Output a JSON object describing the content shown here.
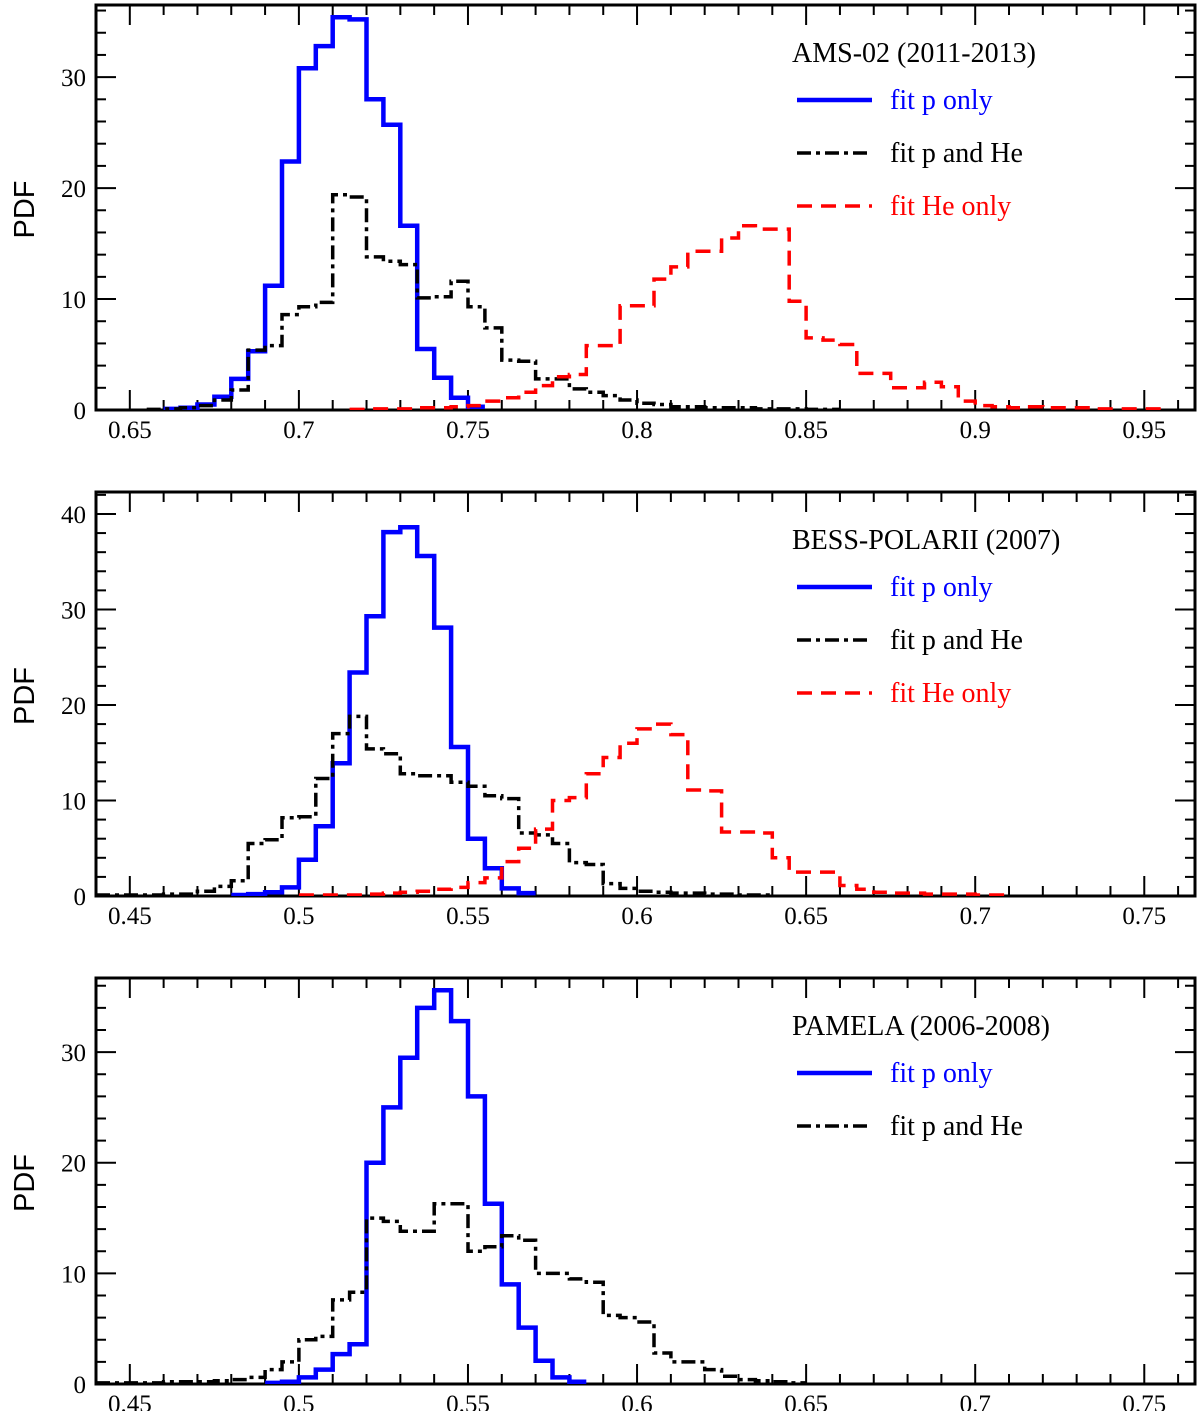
{
  "chart_data": [
    {
      "type": "step",
      "title": "AMS-02 (2011-2013)",
      "ylabel": "PDF",
      "xlim": [
        0.64,
        0.965
      ],
      "ylim": [
        0,
        36.5
      ],
      "xticks": [
        0.65,
        0.7,
        0.75,
        0.8,
        0.85,
        0.9,
        0.95
      ],
      "xtick_labels": [
        "0.65",
        "0.7",
        "0.75",
        "0.8",
        "0.85",
        "0.9",
        "0.95"
      ],
      "yticks": [
        0,
        10,
        20,
        30
      ],
      "ytick_labels": [
        "0",
        "10",
        "20",
        "30"
      ],
      "series": [
        {
          "name": "fit p only",
          "color": "#0000ff",
          "style": "solid",
          "edges": [
            0.66,
            0.665,
            0.67,
            0.675,
            0.68,
            0.685,
            0.69,
            0.695,
            0.7,
            0.705,
            0.71,
            0.715,
            0.72,
            0.725,
            0.73,
            0.735,
            0.74,
            0.745,
            0.75,
            0.755
          ],
          "values": [
            0.1,
            0.2,
            0.5,
            1.2,
            2.8,
            5.3,
            11.2,
            22.4,
            30.8,
            32.8,
            35.4,
            35.2,
            28.0,
            25.7,
            16.6,
            5.5,
            2.9,
            1.1,
            0.3
          ]
        },
        {
          "name": "fit p and He",
          "color": "#000000",
          "style": "dashdot",
          "edges": [
            0.655,
            0.66,
            0.665,
            0.67,
            0.675,
            0.68,
            0.685,
            0.69,
            0.695,
            0.7,
            0.705,
            0.71,
            0.715,
            0.72,
            0.725,
            0.73,
            0.735,
            0.74,
            0.745,
            0.75,
            0.755,
            0.76,
            0.765,
            0.77,
            0.775,
            0.78,
            0.785,
            0.79,
            0.795,
            0.8,
            0.805,
            0.81,
            0.815,
            0.82,
            0.825,
            0.83,
            0.835,
            0.84,
            0.845,
            0.85,
            0.855,
            0.86
          ],
          "values": [
            0.05,
            0.1,
            0.2,
            0.4,
            0.9,
            1.8,
            5.4,
            5.8,
            8.6,
            9.3,
            9.7,
            19.4,
            19.2,
            13.8,
            13.4,
            13.1,
            10.1,
            10.2,
            11.6,
            9.3,
            7.4,
            4.5,
            4.4,
            2.8,
            2.8,
            1.9,
            1.6,
            1.3,
            0.9,
            0.6,
            0.5,
            0.3,
            0.3,
            0.2,
            0.2,
            0.2,
            0.1,
            0.1,
            0.1,
            0.05,
            0.05
          ]
        },
        {
          "name": "fit He only",
          "color": "#ff0000",
          "style": "dashed",
          "edges": [
            0.715,
            0.72,
            0.725,
            0.73,
            0.735,
            0.74,
            0.745,
            0.75,
            0.755,
            0.76,
            0.765,
            0.77,
            0.775,
            0.78,
            0.785,
            0.79,
            0.795,
            0.8,
            0.805,
            0.81,
            0.815,
            0.82,
            0.825,
            0.83,
            0.835,
            0.84,
            0.845,
            0.85,
            0.855,
            0.86,
            0.865,
            0.87,
            0.875,
            0.88,
            0.885,
            0.89,
            0.895,
            0.9,
            0.905,
            0.91,
            0.915,
            0.92,
            0.925,
            0.93,
            0.935,
            0.94,
            0.945,
            0.95,
            0.955
          ],
          "values": [
            0.05,
            0.1,
            0.1,
            0.1,
            0.2,
            0.2,
            0.3,
            0.4,
            0.8,
            1.1,
            1.6,
            2.2,
            3.0,
            3.2,
            5.8,
            5.8,
            9.4,
            9.4,
            11.8,
            12.9,
            14.3,
            14.3,
            15.5,
            16.6,
            16.3,
            16.3,
            9.8,
            6.5,
            6.3,
            5.9,
            3.3,
            3.3,
            2.0,
            2.0,
            2.5,
            2.1,
            0.8,
            0.4,
            0.3,
            0.2,
            0.3,
            0.2,
            0.2,
            0.2,
            0.1,
            0.1,
            0.1,
            0.1
          ]
        }
      ]
    },
    {
      "type": "step",
      "title": "BESS-POLARII (2007)",
      "ylabel": "PDF",
      "xlim": [
        0.44,
        0.765
      ],
      "ylim": [
        0,
        42.3
      ],
      "xticks": [
        0.45,
        0.5,
        0.55,
        0.6,
        0.65,
        0.7,
        0.75
      ],
      "xtick_labels": [
        "0.45",
        "0.5",
        "0.55",
        "0.6",
        "0.65",
        "0.7",
        "0.75"
      ],
      "yticks": [
        0,
        10,
        20,
        30,
        40
      ],
      "ytick_labels": [
        "0",
        "10",
        "20",
        "30",
        "40"
      ],
      "series": [
        {
          "name": "fit p only",
          "color": "#0000ff",
          "style": "solid",
          "edges": [
            0.48,
            0.485,
            0.49,
            0.495,
            0.5,
            0.505,
            0.51,
            0.515,
            0.52,
            0.525,
            0.53,
            0.535,
            0.54,
            0.545,
            0.55,
            0.555,
            0.56,
            0.565,
            0.57
          ],
          "values": [
            0.1,
            0.2,
            0.4,
            0.9,
            3.8,
            7.3,
            13.9,
            23.4,
            29.3,
            38.1,
            38.6,
            35.6,
            28.1,
            15.6,
            6.0,
            2.9,
            0.8,
            0.3
          ]
        },
        {
          "name": "fit p and He",
          "color": "#000000",
          "style": "dashdot",
          "edges": [
            0.44,
            0.445,
            0.45,
            0.455,
            0.46,
            0.465,
            0.47,
            0.475,
            0.48,
            0.485,
            0.49,
            0.495,
            0.5,
            0.505,
            0.51,
            0.515,
            0.52,
            0.525,
            0.53,
            0.535,
            0.54,
            0.545,
            0.55,
            0.555,
            0.56,
            0.565,
            0.57,
            0.575,
            0.58,
            0.585,
            0.59,
            0.595,
            0.6,
            0.605,
            0.61,
            0.615,
            0.62,
            0.625,
            0.63,
            0.635,
            0.64
          ],
          "values": [
            0.1,
            0.1,
            0.1,
            0.1,
            0.2,
            0.2,
            0.5,
            1.0,
            1.6,
            5.5,
            5.9,
            8.2,
            8.3,
            12.3,
            17.0,
            18.8,
            15.4,
            14.9,
            12.8,
            12.6,
            12.6,
            11.9,
            11.5,
            10.5,
            10.2,
            6.6,
            6.4,
            5.5,
            3.5,
            3.3,
            1.3,
            0.8,
            0.5,
            0.4,
            0.3,
            0.3,
            0.2,
            0.2,
            0.1,
            0.1
          ]
        },
        {
          "name": "fit He only",
          "color": "#ff0000",
          "style": "dashed",
          "edges": [
            0.5,
            0.505,
            0.51,
            0.515,
            0.52,
            0.525,
            0.53,
            0.535,
            0.54,
            0.545,
            0.55,
            0.555,
            0.56,
            0.565,
            0.57,
            0.575,
            0.58,
            0.585,
            0.59,
            0.595,
            0.6,
            0.605,
            0.61,
            0.615,
            0.62,
            0.625,
            0.63,
            0.635,
            0.64,
            0.645,
            0.65,
            0.655,
            0.66,
            0.665,
            0.67,
            0.675,
            0.68,
            0.685,
            0.69,
            0.695,
            0.7,
            0.705,
            0.71
          ],
          "values": [
            0.1,
            0.1,
            0.1,
            0.1,
            0.2,
            0.3,
            0.4,
            0.5,
            0.7,
            0.9,
            1.4,
            1.9,
            3.6,
            5.0,
            7.0,
            10.0,
            10.3,
            12.8,
            14.5,
            16.0,
            17.5,
            18.0,
            16.9,
            11.1,
            11.0,
            6.7,
            6.7,
            6.6,
            4.0,
            2.5,
            2.5,
            2.5,
            1.1,
            0.7,
            0.4,
            0.3,
            0.3,
            0.2,
            0.2,
            0.2,
            0.1,
            0.1
          ]
        }
      ]
    },
    {
      "type": "step",
      "title": "PAMELA (2006-2008)",
      "ylabel": "PDF",
      "xlim": [
        0.44,
        0.765
      ],
      "ylim": [
        0,
        36.7
      ],
      "xticks": [
        0.45,
        0.5,
        0.55,
        0.6,
        0.65,
        0.7,
        0.75
      ],
      "xtick_labels": [
        "0.45",
        "0.5",
        "0.55",
        "0.6",
        "0.65",
        "0.7",
        "0.75"
      ],
      "yticks": [
        0,
        10,
        20,
        30
      ],
      "ytick_labels": [
        "0",
        "10",
        "20",
        "30"
      ],
      "series": [
        {
          "name": "fit p only",
          "color": "#0000ff",
          "style": "solid",
          "edges": [
            0.49,
            0.495,
            0.5,
            0.505,
            0.51,
            0.515,
            0.52,
            0.525,
            0.53,
            0.535,
            0.54,
            0.545,
            0.55,
            0.555,
            0.56,
            0.565,
            0.57,
            0.575,
            0.58,
            0.585
          ],
          "values": [
            0.1,
            0.2,
            0.6,
            1.3,
            2.7,
            3.6,
            20.0,
            25.0,
            29.5,
            34.0,
            35.6,
            32.8,
            26.0,
            16.3,
            9.0,
            5.1,
            2.1,
            0.6,
            0.2
          ]
        },
        {
          "name": "fit p and He",
          "color": "#000000",
          "style": "dashdot",
          "edges": [
            0.44,
            0.445,
            0.45,
            0.455,
            0.46,
            0.465,
            0.47,
            0.475,
            0.48,
            0.485,
            0.49,
            0.495,
            0.5,
            0.505,
            0.51,
            0.515,
            0.52,
            0.525,
            0.53,
            0.535,
            0.54,
            0.545,
            0.55,
            0.555,
            0.56,
            0.565,
            0.57,
            0.575,
            0.58,
            0.585,
            0.59,
            0.595,
            0.6,
            0.605,
            0.61,
            0.615,
            0.62,
            0.625,
            0.63,
            0.635,
            0.64,
            0.645,
            0.65
          ],
          "values": [
            0.1,
            0.1,
            0.1,
            0.1,
            0.2,
            0.2,
            0.2,
            0.3,
            0.4,
            0.6,
            1.3,
            2.0,
            4.0,
            4.3,
            7.6,
            8.3,
            15.0,
            14.7,
            13.8,
            13.8,
            16.3,
            16.3,
            12.0,
            12.4,
            13.4,
            13.0,
            10.0,
            10.0,
            9.5,
            9.2,
            6.2,
            6.0,
            5.6,
            2.8,
            2.0,
            2.0,
            1.3,
            0.7,
            0.4,
            0.3,
            0.2,
            0.1
          ]
        }
      ]
    }
  ]
}
